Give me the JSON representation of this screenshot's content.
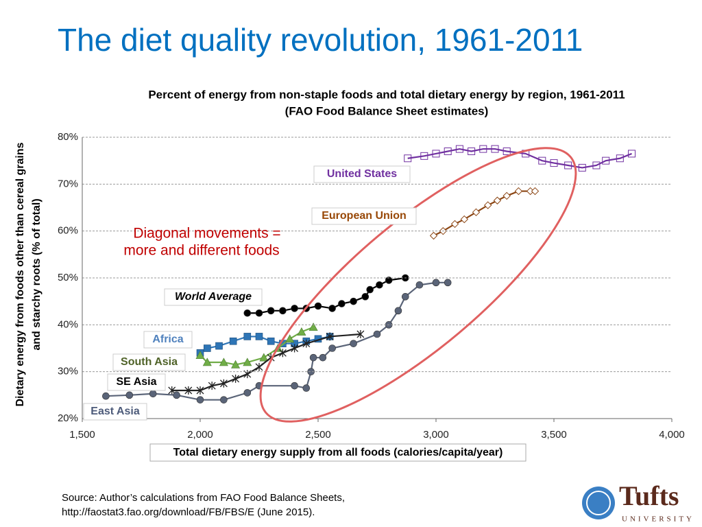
{
  "slide_title": "The diet quality revolution, 1961-2011",
  "chart_data": {
    "type": "scatter-line",
    "title": [
      "Percent of energy from non-staple foods and total dietary energy by region, 1961-2011",
      "(FAO Food Balance Sheet estimates)"
    ],
    "x_label": "Total dietary energy supply from all foods (calories/capita/year)",
    "y_label": [
      "Dietary energy from foods other than cereal grains",
      "and starchy roots (% of total)"
    ],
    "xlim": [
      1500,
      4000
    ],
    "xticks": [
      {
        "value": 1500,
        "label": "1,500"
      },
      {
        "value": 2000,
        "label": "2,000"
      },
      {
        "value": 2500,
        "label": "2,500"
      },
      {
        "value": 3000,
        "label": "3,000"
      },
      {
        "value": 3500,
        "label": "3,500"
      },
      {
        "value": 4000,
        "label": "4,000"
      }
    ],
    "ylim": [
      20,
      80
    ],
    "yticks": [
      {
        "value": 20,
        "label": "20%"
      },
      {
        "value": 30,
        "label": "30%"
      },
      {
        "value": 40,
        "label": "40%"
      },
      {
        "value": 50,
        "label": "50%"
      },
      {
        "value": 60,
        "label": "60%"
      },
      {
        "value": 70,
        "label": "70%"
      },
      {
        "value": 80,
        "label": "80%"
      }
    ],
    "grid": true,
    "annotation": [
      "Diagonal movements =",
      "more and different foods"
    ],
    "series": [
      {
        "name": "United States",
        "color": "#7030a0",
        "label_color": "#7030a0",
        "marker": "square-open",
        "x": [
          2880,
          2950,
          3000,
          3050,
          3100,
          3150,
          3200,
          3250,
          3300,
          3380,
          3450,
          3500,
          3560,
          3620,
          3680,
          3720,
          3780,
          3830
        ],
        "values": [
          75.5,
          76,
          76.5,
          77,
          77.5,
          77,
          77.5,
          77.5,
          77,
          76.5,
          75,
          74.5,
          74,
          73.5,
          74,
          75,
          75.5,
          76.5
        ]
      },
      {
        "name": "European Union",
        "color": "#8b4513",
        "label_color": "#984807",
        "marker": "diamond-open",
        "x": [
          2990,
          3030,
          3080,
          3120,
          3170,
          3220,
          3260,
          3300,
          3350,
          3400,
          3420
        ],
        "values": [
          59,
          60,
          61.5,
          62.5,
          64,
          65.5,
          66.5,
          67.5,
          68.5,
          68.5,
          68.5
        ]
      },
      {
        "name": "World Average",
        "color": "#000000",
        "label_color": "#000000",
        "marker": "circle",
        "x": [
          2200,
          2250,
          2300,
          2350,
          2400,
          2450,
          2500,
          2560,
          2600,
          2650,
          2700,
          2720,
          2760,
          2800,
          2870
        ],
        "values": [
          42.5,
          42.5,
          43,
          43,
          43.5,
          43.5,
          44,
          43.5,
          44.5,
          45,
          46,
          47.5,
          48.5,
          49.5,
          50
        ]
      },
      {
        "name": "Africa",
        "color": "#2e75b6",
        "label_color": "#4f81bd",
        "marker": "square",
        "x": [
          2000,
          2030,
          2080,
          2140,
          2200,
          2250,
          2300,
          2350,
          2400,
          2450,
          2500,
          2550
        ],
        "values": [
          34,
          35,
          35.5,
          36.5,
          37.5,
          37.5,
          36.5,
          36,
          36,
          36.5,
          37,
          37.5
        ]
      },
      {
        "name": "South Asia",
        "color": "#70ad47",
        "label_color": "#4f6228",
        "marker": "triangle",
        "x": [
          2000,
          2030,
          2100,
          2150,
          2200,
          2270,
          2330,
          2380,
          2430,
          2480
        ],
        "values": [
          33.5,
          32,
          32,
          31.5,
          32,
          33,
          35,
          37,
          38.5,
          39.5
        ]
      },
      {
        "name": "SE Asia",
        "color": "#222222",
        "label_color": "#000000",
        "marker": "star",
        "x": [
          1880,
          1950,
          2000,
          2050,
          2100,
          2150,
          2200,
          2250,
          2300,
          2350,
          2400,
          2450,
          2550,
          2680
        ],
        "values": [
          26,
          26,
          26,
          27,
          27.5,
          28.5,
          29.5,
          31,
          33,
          34,
          35,
          36,
          37.5,
          38
        ]
      },
      {
        "name": "East Asia",
        "color": "#5a6478",
        "label_color": "#4d5b7a",
        "marker": "circle",
        "x": [
          1600,
          1700,
          1800,
          1900,
          2000,
          2100,
          2200,
          2250,
          2400,
          2450,
          2470,
          2480,
          2520,
          2560,
          2650,
          2750,
          2800,
          2840,
          2870,
          2930,
          3000,
          3050
        ],
        "values": [
          24.8,
          25,
          25.3,
          25,
          24,
          24,
          25.5,
          27,
          27,
          26.5,
          30,
          33,
          33,
          35,
          36,
          38,
          40,
          43,
          46,
          48.5,
          49,
          49
        ]
      }
    ]
  },
  "source": [
    "Source: Author’s calculations from FAO Food Balance Sheets,",
    "http://faostat3.fao.org/download/FB/FBS/E (June 2015)."
  ],
  "logo": {
    "name": "Tufts",
    "subtitle": "UNIVERSITY"
  }
}
